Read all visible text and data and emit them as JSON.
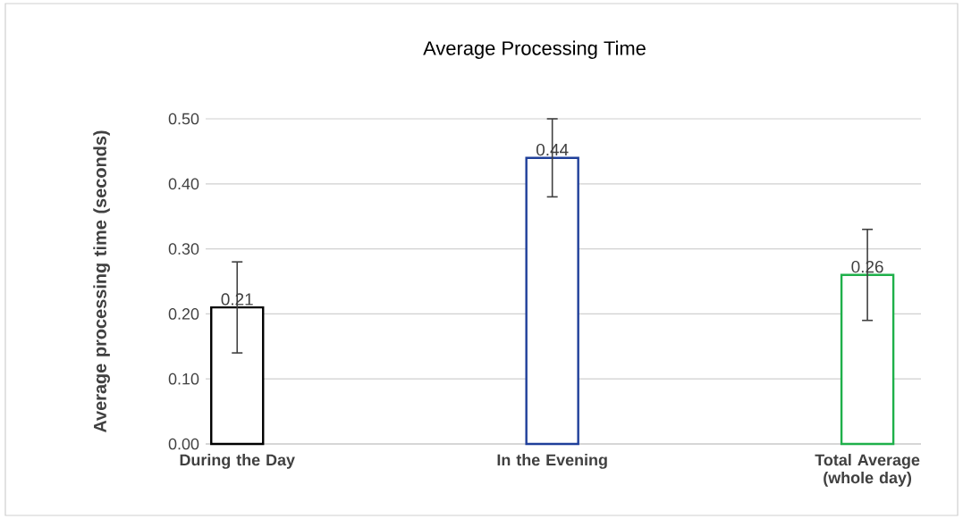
{
  "chart_data": {
    "type": "bar",
    "title": "Average Processing Time",
    "ylabel": "Average processing time (seconds)",
    "categories": [
      "During the Day",
      "In the Evening",
      "Total Average (whole day)"
    ],
    "values": [
      0.21,
      0.44,
      0.26
    ],
    "errors": [
      0.07,
      0.06,
      0.07
    ],
    "colors": [
      "#000000",
      "#1f3f9a",
      "#1fb04a"
    ],
    "ylim": [
      0,
      0.5
    ],
    "yticks": [
      {
        "value": 0,
        "label": "0.00"
      },
      {
        "value": 0.1,
        "label": "0.10"
      },
      {
        "value": 0.2,
        "label": "0.20"
      },
      {
        "value": 0.3,
        "label": "0.30"
      },
      {
        "value": 0.4,
        "label": "0.40"
      },
      {
        "value": 0.5,
        "label": "0.50"
      }
    ],
    "grid": "y",
    "data_labels": true
  }
}
